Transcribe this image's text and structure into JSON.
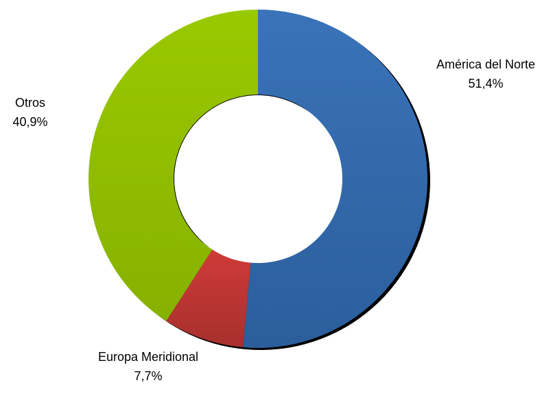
{
  "chart_data": {
    "type": "pie",
    "variant": "donut",
    "title": "",
    "slices": [
      {
        "label": "América del Norte",
        "value": 51.4,
        "value_label": "51,4%",
        "color": "#3a73b9",
        "color_dark": "#2b5e9b"
      },
      {
        "label": "Europa Meridional",
        "value": 7.7,
        "value_label": "7,7%",
        "color": "#cf3a38",
        "color_dark": "#a7302d"
      },
      {
        "label": "Otros",
        "value": 40.9,
        "value_label": "40,9%",
        "color": "#99c900",
        "color_dark": "#86b100"
      }
    ],
    "start_angle_deg": 0,
    "direction": "clockwise",
    "legend": "none",
    "data_labels": "outside"
  }
}
